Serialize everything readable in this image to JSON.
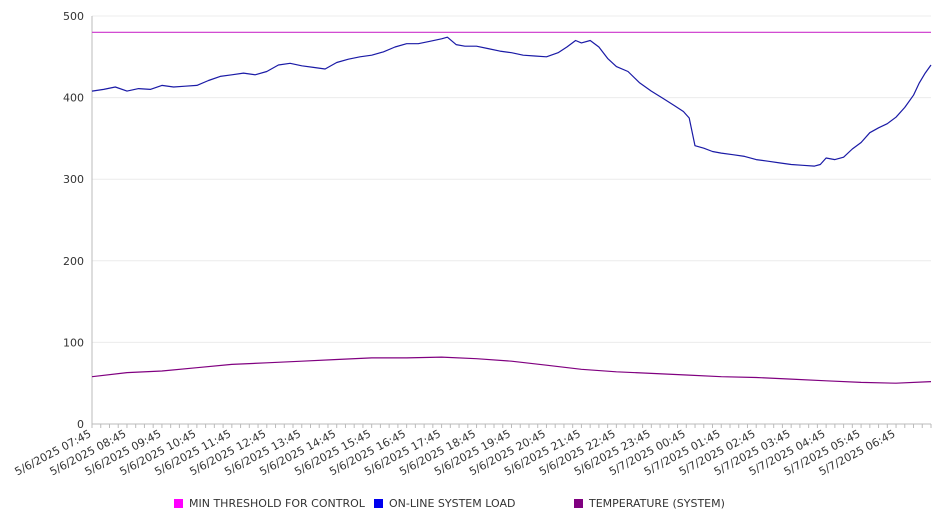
{
  "chart_data": {
    "type": "line",
    "title": "",
    "xlabel": "",
    "ylabel": "",
    "ylim": [
      0,
      500
    ],
    "yticks": [
      "0",
      "100",
      "200",
      "300",
      "400",
      "500"
    ],
    "grid": "horizontal",
    "legend_position": "bottom",
    "x_tick_labels": [
      "5/6/2025 07:45",
      "5/6/2025 08:45",
      "5/6/2025 09:45",
      "5/6/2025 10:45",
      "5/6/2025 11:45",
      "5/6/2025 12:45",
      "5/6/2025 13:45",
      "5/6/2025 14:45",
      "5/6/2025 15:45",
      "5/6/2025 16:45",
      "5/6/2025 17:45",
      "5/6/2025 18:45",
      "5/6/2025 19:45",
      "5/6/2025 20:45",
      "5/6/2025 21:45",
      "5/6/2025 22:45",
      "5/6/2025 23:45",
      "5/7/2025 00:45",
      "5/7/2025 01:45",
      "5/7/2025 02:45",
      "5/7/2025 03:45",
      "5/7/2025 04:45",
      "5/7/2025 05:45",
      "5/7/2025 06:45"
    ],
    "x_range": [
      "5/6/2025 07:45",
      "5/7/2025 07:45"
    ],
    "series": [
      {
        "name": "MIN THRESHOLD FOR CONTROL",
        "color": "#cc33cc",
        "legend_color": "#ff00ff",
        "points": [
          [
            "5/6/2025 07:45",
            480
          ],
          [
            "5/7/2025 07:45",
            480
          ]
        ]
      },
      {
        "name": "ON-LINE SYSTEM LOAD",
        "color": "#1a1aa6",
        "legend_color": "#0000ee",
        "points": [
          [
            "5/6/2025 07:45",
            408
          ],
          [
            "5/6/2025 08:05",
            410
          ],
          [
            "5/6/2025 08:25",
            413
          ],
          [
            "5/6/2025 08:45",
            408
          ],
          [
            "5/6/2025 09:05",
            411
          ],
          [
            "5/6/2025 09:25",
            410
          ],
          [
            "5/6/2025 09:45",
            415
          ],
          [
            "5/6/2025 10:05",
            413
          ],
          [
            "5/6/2025 10:25",
            414
          ],
          [
            "5/6/2025 10:45",
            415
          ],
          [
            "5/6/2025 11:05",
            421
          ],
          [
            "5/6/2025 11:25",
            426
          ],
          [
            "5/6/2025 11:45",
            428
          ],
          [
            "5/6/2025 12:05",
            430
          ],
          [
            "5/6/2025 12:25",
            428
          ],
          [
            "5/6/2025 12:45",
            432
          ],
          [
            "5/6/2025 13:05",
            440
          ],
          [
            "5/6/2025 13:25",
            442
          ],
          [
            "5/6/2025 13:45",
            439
          ],
          [
            "5/6/2025 14:05",
            437
          ],
          [
            "5/6/2025 14:25",
            435
          ],
          [
            "5/6/2025 14:45",
            443
          ],
          [
            "5/6/2025 15:05",
            447
          ],
          [
            "5/6/2025 15:25",
            450
          ],
          [
            "5/6/2025 15:45",
            452
          ],
          [
            "5/6/2025 16:05",
            456
          ],
          [
            "5/6/2025 16:25",
            462
          ],
          [
            "5/6/2025 16:45",
            466
          ],
          [
            "5/6/2025 17:05",
            466
          ],
          [
            "5/6/2025 17:25",
            469
          ],
          [
            "5/6/2025 17:45",
            472
          ],
          [
            "5/6/2025 17:55",
            474
          ],
          [
            "5/6/2025 18:10",
            465
          ],
          [
            "5/6/2025 18:25",
            463
          ],
          [
            "5/6/2025 18:45",
            463
          ],
          [
            "5/6/2025 19:05",
            460
          ],
          [
            "5/6/2025 19:25",
            457
          ],
          [
            "5/6/2025 19:45",
            455
          ],
          [
            "5/6/2025 20:05",
            452
          ],
          [
            "5/6/2025 20:25",
            451
          ],
          [
            "5/6/2025 20:45",
            450
          ],
          [
            "5/6/2025 21:05",
            455
          ],
          [
            "5/6/2025 21:20",
            462
          ],
          [
            "5/6/2025 21:35",
            470
          ],
          [
            "5/6/2025 21:45",
            467
          ],
          [
            "5/6/2025 22:00",
            470
          ],
          [
            "5/6/2025 22:15",
            462
          ],
          [
            "5/6/2025 22:30",
            448
          ],
          [
            "5/6/2025 22:45",
            438
          ],
          [
            "5/6/2025 23:05",
            432
          ],
          [
            "5/6/2025 23:25",
            418
          ],
          [
            "5/6/2025 23:45",
            408
          ],
          [
            "5/7/2025 00:05",
            399
          ],
          [
            "5/7/2025 00:25",
            390
          ],
          [
            "5/7/2025 00:40",
            383
          ],
          [
            "5/7/2025 00:50",
            375
          ],
          [
            "5/7/2025 01:00",
            341
          ],
          [
            "5/7/2025 01:15",
            338
          ],
          [
            "5/7/2025 01:30",
            334
          ],
          [
            "5/7/2025 01:45",
            332
          ],
          [
            "5/7/2025 02:05",
            330
          ],
          [
            "5/7/2025 02:25",
            328
          ],
          [
            "5/7/2025 02:45",
            324
          ],
          [
            "5/7/2025 03:05",
            322
          ],
          [
            "5/7/2025 03:25",
            320
          ],
          [
            "5/7/2025 03:45",
            318
          ],
          [
            "5/7/2025 04:05",
            317
          ],
          [
            "5/7/2025 04:25",
            316
          ],
          [
            "5/7/2025 04:35",
            318
          ],
          [
            "5/7/2025 04:45",
            326
          ],
          [
            "5/7/2025 05:00",
            324
          ],
          [
            "5/7/2025 05:15",
            327
          ],
          [
            "5/7/2025 05:30",
            337
          ],
          [
            "5/7/2025 05:45",
            345
          ],
          [
            "5/7/2025 06:00",
            357
          ],
          [
            "5/7/2025 06:15",
            363
          ],
          [
            "5/7/2025 06:30",
            368
          ],
          [
            "5/7/2025 06:45",
            376
          ],
          [
            "5/7/2025 07:00",
            388
          ],
          [
            "5/7/2025 07:15",
            403
          ],
          [
            "5/7/2025 07:25",
            418
          ],
          [
            "5/7/2025 07:35",
            430
          ],
          [
            "5/7/2025 07:45",
            440
          ]
        ]
      },
      {
        "name": "TEMPERATURE (SYSTEM)",
        "color": "#800080",
        "legend_color": "#800080",
        "points": [
          [
            "5/6/2025 07:45",
            58
          ],
          [
            "5/6/2025 08:45",
            63
          ],
          [
            "5/6/2025 09:45",
            65
          ],
          [
            "5/6/2025 10:45",
            69
          ],
          [
            "5/6/2025 11:45",
            73
          ],
          [
            "5/6/2025 12:45",
            75
          ],
          [
            "5/6/2025 13:45",
            77
          ],
          [
            "5/6/2025 14:45",
            79
          ],
          [
            "5/6/2025 15:45",
            81
          ],
          [
            "5/6/2025 16:45",
            81
          ],
          [
            "5/6/2025 17:45",
            82
          ],
          [
            "5/6/2025 18:45",
            80
          ],
          [
            "5/6/2025 19:45",
            77
          ],
          [
            "5/6/2025 20:45",
            72
          ],
          [
            "5/6/2025 21:45",
            67
          ],
          [
            "5/6/2025 22:45",
            64
          ],
          [
            "5/6/2025 23:45",
            62
          ],
          [
            "5/7/2025 00:45",
            60
          ],
          [
            "5/7/2025 01:45",
            58
          ],
          [
            "5/7/2025 02:45",
            57
          ],
          [
            "5/7/2025 03:45",
            55
          ],
          [
            "5/7/2025 04:45",
            53
          ],
          [
            "5/7/2025 05:45",
            51
          ],
          [
            "5/7/2025 06:45",
            50
          ],
          [
            "5/7/2025 07:45",
            52
          ]
        ]
      }
    ]
  }
}
